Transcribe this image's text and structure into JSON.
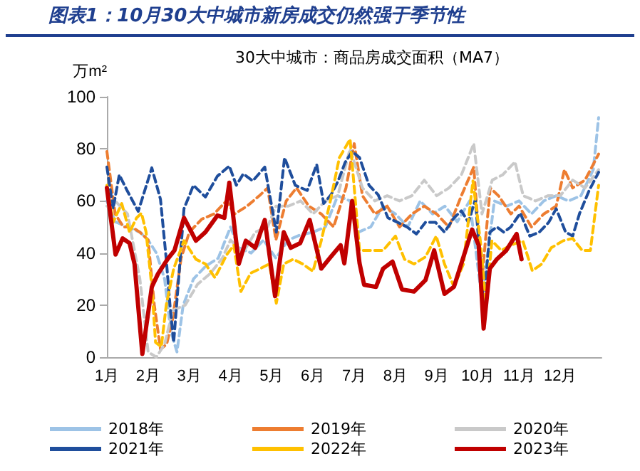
{
  "chart_data": {
    "type": "line",
    "title": "图表1：10月30大中城市新房成交仍然强于季节性",
    "subtitle": "30大中城市：商品房成交面积（MA7）",
    "ylabel": "万m²",
    "xlim": [
      1,
      13
    ],
    "ylim": [
      0,
      100
    ],
    "yticks": [
      0,
      20,
      40,
      60,
      80,
      100
    ],
    "xticks": [
      {
        "value": 1,
        "label": "1月"
      },
      {
        "value": 2,
        "label": "2月"
      },
      {
        "value": 3,
        "label": "3月"
      },
      {
        "value": 4,
        "label": "4月"
      },
      {
        "value": 5,
        "label": "5月"
      },
      {
        "value": 6,
        "label": "6月"
      },
      {
        "value": 7,
        "label": "7月"
      },
      {
        "value": 8,
        "label": "8月"
      },
      {
        "value": 9,
        "label": "9月"
      },
      {
        "value": 10,
        "label": "10月"
      },
      {
        "value": 11,
        "label": "11月"
      },
      {
        "value": 12,
        "label": "12月"
      }
    ],
    "grid": false,
    "legend": "bottom",
    "marker": "none",
    "series": [
      {
        "name": "2018年",
        "color": "#9dc3e6",
        "line_style": "dashed",
        "x": [
          1,
          1.2,
          1.5,
          1.8,
          2.0,
          2.2,
          2.4,
          2.55,
          2.7,
          2.85,
          3.1,
          3.4,
          3.7,
          4.0,
          4.2,
          4.5,
          4.8,
          5.1,
          5.4,
          5.7,
          6.0,
          6.3,
          6.6,
          6.9,
          7.1,
          7.4,
          7.7,
          8.0,
          8.3,
          8.6,
          8.9,
          9.2,
          9.5,
          9.8,
          10.1,
          10.4,
          10.7,
          11.0,
          11.3,
          11.6,
          11.9,
          12.2,
          12.5,
          12.8,
          12.93
        ],
        "values": [
          60,
          52,
          50,
          48,
          45,
          40,
          30,
          10,
          2,
          20,
          30,
          35,
          38,
          50,
          42,
          40,
          45,
          38,
          45,
          47,
          48,
          50,
          62,
          60,
          48,
          50,
          58,
          55,
          50,
          60,
          55,
          58,
          52,
          60,
          22,
          60,
          58,
          60,
          55,
          60,
          62,
          60,
          62,
          72,
          92
        ]
      },
      {
        "name": "2019年",
        "color": "#ed7d31",
        "line_style": "dashed",
        "x": [
          1,
          1.2,
          1.4,
          1.6,
          1.8,
          2.0,
          2.15,
          2.3,
          2.45,
          2.6,
          2.8,
          3.0,
          3.3,
          3.6,
          3.9,
          4.1,
          4.4,
          4.7,
          4.9,
          5.1,
          5.35,
          5.6,
          5.9,
          6.2,
          6.5,
          6.8,
          7.0,
          7.2,
          7.5,
          7.8,
          8.1,
          8.4,
          8.7,
          9.0,
          9.3,
          9.6,
          9.9,
          10.1,
          10.3,
          10.5,
          10.8,
          11.0,
          11.3,
          11.6,
          11.9,
          12.1,
          12.3,
          12.6,
          12.93
        ],
        "values": [
          79,
          55,
          50,
          50,
          48,
          45,
          20,
          3,
          5,
          15,
          38,
          48,
          53,
          55,
          60,
          55,
          58,
          62,
          65,
          45,
          60,
          65,
          58,
          55,
          50,
          65,
          82,
          62,
          55,
          58,
          50,
          55,
          58,
          55,
          50,
          62,
          73,
          30,
          65,
          62,
          55,
          58,
          50,
          55,
          58,
          72,
          65,
          68,
          78
        ]
      },
      {
        "name": "2020年",
        "color": "#c9c9c9",
        "line_style": "dashed",
        "x": [
          1,
          1.2,
          1.5,
          1.8,
          2.0,
          2.2,
          2.4,
          2.6,
          2.9,
          3.2,
          3.5,
          3.8,
          4.0,
          4.3,
          4.6,
          4.9,
          5.1,
          5.4,
          5.7,
          6.0,
          6.3,
          6.6,
          6.9,
          7.2,
          7.5,
          7.8,
          8.1,
          8.4,
          8.7,
          9.0,
          9.3,
          9.6,
          9.9,
          10.1,
          10.35,
          10.6,
          10.9,
          11.1,
          11.4,
          11.7,
          12.0,
          12.3,
          12.6,
          12.93
        ],
        "values": [
          58,
          60,
          55,
          30,
          2,
          0,
          5,
          18,
          20,
          28,
          32,
          38,
          45,
          40,
          48,
          50,
          58,
          58,
          60,
          55,
          60,
          62,
          80,
          65,
          60,
          62,
          60,
          62,
          68,
          62,
          65,
          70,
          82,
          55,
          68,
          70,
          75,
          62,
          60,
          62,
          62,
          68,
          65,
          72
        ]
      },
      {
        "name": "2021年",
        "color": "#1f4e9c",
        "line_style": "dashed",
        "x": [
          1,
          1.15,
          1.3,
          1.49,
          1.76,
          2.09,
          2.3,
          2.44,
          2.53,
          2.62,
          2.76,
          2.87,
          3.1,
          3.39,
          3.68,
          3.97,
          4.14,
          4.31,
          4.54,
          4.83,
          5.11,
          5.31,
          5.57,
          5.86,
          6.09,
          6.26,
          6.44,
          6.61,
          6.78,
          6.95,
          7.13,
          7.36,
          7.58,
          7.82,
          8.05,
          8.28,
          8.51,
          8.73,
          8.97,
          9.19,
          9.42,
          9.6,
          9.77,
          9.94,
          10.14,
          10.29,
          10.46,
          10.63,
          10.8,
          11.03,
          11.26,
          11.49,
          11.72,
          11.9,
          12.13,
          12.3,
          12.47,
          12.7,
          12.93
        ],
        "values": [
          73,
          57,
          70,
          64,
          56,
          72.7,
          60.6,
          37.6,
          20,
          5.7,
          34,
          57,
          66,
          61.5,
          69.5,
          73.4,
          66,
          70.4,
          67.7,
          73,
          48,
          76.6,
          66,
          64,
          74,
          59,
          62.4,
          67.7,
          74.8,
          79,
          76.6,
          66,
          62.4,
          53.5,
          51.8,
          50,
          47.3,
          51.8,
          51.8,
          48,
          53.5,
          56.2,
          51.8,
          60.6,
          20,
          48,
          50,
          48,
          50,
          55.3,
          46.5,
          48,
          51.8,
          57,
          48,
          46.5,
          55.3,
          64,
          71
        ]
      },
      {
        "name": "2022年",
        "color": "#ffc000",
        "line_style": "dashed",
        "x": [
          1,
          1.15,
          1.36,
          1.55,
          1.72,
          1.84,
          1.95,
          2.09,
          2.18,
          2.32,
          2.44,
          2.62,
          2.87,
          3.16,
          3.39,
          3.62,
          3.91,
          4.08,
          4.25,
          4.49,
          4.72,
          4.94,
          5.11,
          5.29,
          5.52,
          5.75,
          6.0,
          6.2,
          6.43,
          6.64,
          6.9,
          7.13,
          7.36,
          7.7,
          8.0,
          8.22,
          8.45,
          8.73,
          8.99,
          9.19,
          9.42,
          9.65,
          9.88,
          10.06,
          10.2,
          10.34,
          10.57,
          10.8,
          11.09,
          11.32,
          11.55,
          11.78,
          12.07,
          12.3,
          12.53,
          12.73,
          12.93
        ],
        "values": [
          66,
          51.8,
          59,
          48,
          53.5,
          55.3,
          48,
          27,
          5.7,
          4,
          20,
          34,
          44.7,
          37.6,
          35.8,
          30.5,
          39.4,
          43,
          25.2,
          32.3,
          34,
          35.8,
          20.7,
          35.8,
          37.6,
          35.8,
          33,
          44.7,
          60.6,
          76.6,
          83.7,
          41,
          41,
          41,
          46.5,
          37.6,
          35.8,
          38.5,
          46.5,
          35.8,
          27,
          35.8,
          67.7,
          44.7,
          20,
          44.7,
          41,
          43,
          44.7,
          33.2,
          35.8,
          42,
          44.7,
          45.6,
          41,
          41,
          66
        ]
      },
      {
        "name": "2023年",
        "color": "#c00000",
        "line_style": "solid",
        "x": [
          1,
          1.21,
          1.38,
          1.55,
          1.67,
          1.86,
          2.09,
          2.24,
          2.47,
          2.64,
          2.87,
          3.16,
          3.39,
          3.68,
          3.85,
          3.97,
          4.2,
          4.37,
          4.6,
          4.83,
          5.08,
          5.29,
          5.46,
          5.69,
          5.92,
          6.2,
          6.43,
          6.67,
          6.76,
          6.95,
          7.13,
          7.24,
          7.53,
          7.7,
          7.93,
          8.16,
          8.45,
          8.73,
          8.94,
          9.19,
          9.42,
          9.65,
          9.86,
          10.02,
          10.14,
          10.29,
          10.46,
          10.69,
          10.94,
          11.06
        ],
        "values": [
          65,
          39.4,
          45.6,
          43.8,
          35.8,
          1.2,
          27,
          32,
          37.6,
          41,
          53.5,
          44.7,
          48,
          54.4,
          53.5,
          67,
          35.8,
          44.7,
          42,
          52.7,
          23.4,
          48,
          42,
          43.8,
          52.7,
          34,
          38.5,
          43,
          36,
          60,
          36,
          27.8,
          27,
          34,
          36.7,
          26,
          25.2,
          29.6,
          41,
          24.3,
          27,
          38.5,
          49,
          43,
          11,
          34,
          37.6,
          41,
          47.3,
          37.6
        ]
      }
    ]
  }
}
